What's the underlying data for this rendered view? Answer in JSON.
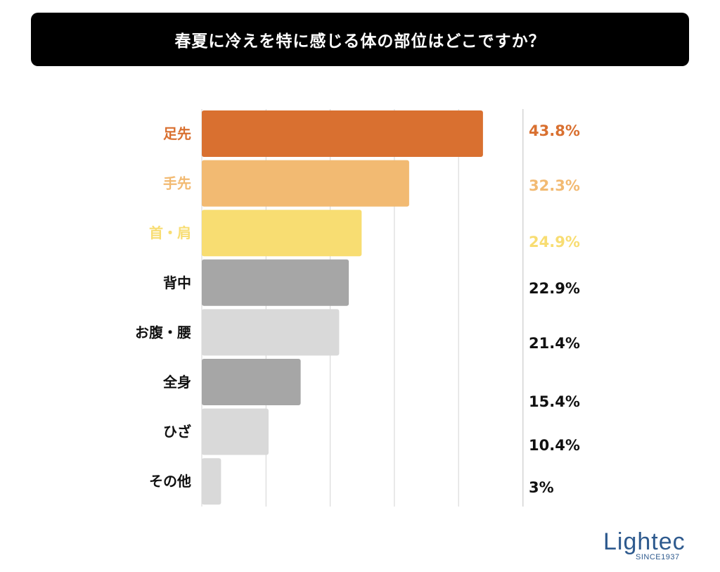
{
  "title": "春夏に冷えを特に感じる体の部位はどこですか？",
  "logo": {
    "name": "Lightec",
    "tagline": "SINCE1937"
  },
  "colors": {
    "dark_orange": "#D97030",
    "light_orange": "#F2BA72",
    "yellow": "#F8DD72",
    "dark_gray": "#A6A6A6",
    "light_gray": "#D9D9D9",
    "label_default": "#111111",
    "gridline": "#D4D4D4",
    "title_bg": "#000000"
  },
  "chart_data": {
    "type": "bar",
    "orientation": "horizontal",
    "title": "春夏に冷えを特に感じる体の部位はどこですか？",
    "xlim": [
      0,
      50
    ],
    "grid": true,
    "legend": "none",
    "categories": [
      "足先",
      "手先",
      "首・肩",
      "背中",
      "お腹・腰",
      "全身",
      "ひざ",
      "その他"
    ],
    "values": [
      43.8,
      32.3,
      24.9,
      22.9,
      21.4,
      15.4,
      10.4,
      3
    ],
    "value_labels": [
      "43.8%",
      "32.3%",
      "24.9%",
      "22.9%",
      "21.4%",
      "15.4%",
      "10.4%",
      "3%"
    ],
    "bar_colors": [
      "#D97030",
      "#F2BA72",
      "#F8DD72",
      "#A6A6A6",
      "#D9D9D9",
      "#A6A6A6",
      "#D9D9D9",
      "#D9D9D9"
    ],
    "label_colors": [
      "#D97030",
      "#F2BA72",
      "#F8DD72",
      "#111111",
      "#111111",
      "#111111",
      "#111111",
      "#111111"
    ]
  }
}
